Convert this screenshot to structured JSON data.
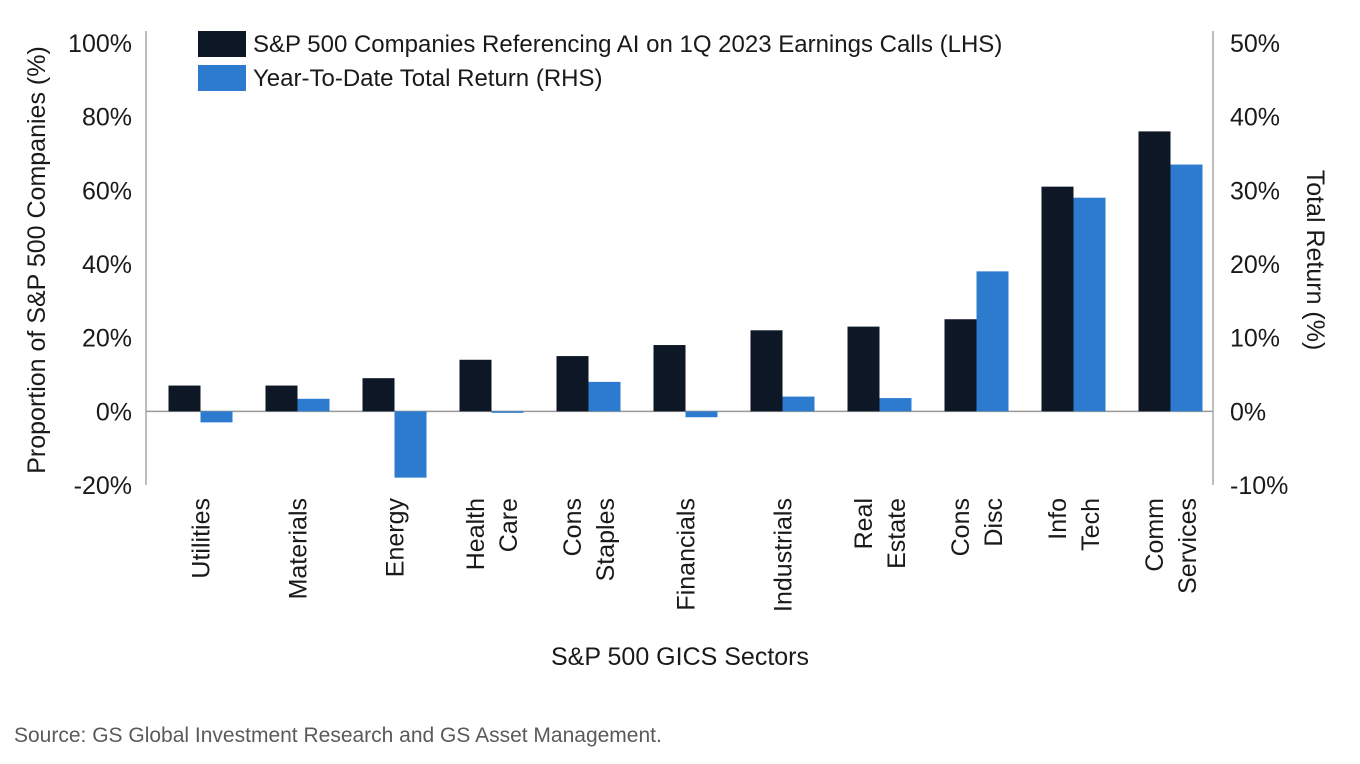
{
  "chart_data": {
    "type": "bar",
    "xlabel": "S&P 500 GICS Sectors",
    "ylabel_left": "Proportion of S&P 500 Companies (%)",
    "ylabel_right": "Total Return (%)",
    "categories": [
      [
        "Utilities"
      ],
      [
        "Materials"
      ],
      [
        "Energy"
      ],
      [
        "Health",
        "Care"
      ],
      [
        "Cons",
        "Staples"
      ],
      [
        "Financials"
      ],
      [
        "Industrials"
      ],
      [
        "Real",
        "Estate"
      ],
      [
        "Cons",
        "Disc"
      ],
      [
        "Info",
        "Tech"
      ],
      [
        "Comm",
        "Services"
      ]
    ],
    "ylim_left": [
      -20,
      100
    ],
    "ylim_right": [
      -10,
      50
    ],
    "yticks_left": [
      -20,
      0,
      20,
      40,
      60,
      80,
      100
    ],
    "yticks_right": [
      -10,
      0,
      10,
      20,
      30,
      40,
      50
    ],
    "tick_format": "%",
    "series": [
      {
        "name": "S&P 500 Companies Referencing AI on 1Q 2023 Earnings Calls (LHS)",
        "axis": "left",
        "color": "#0d1726",
        "values": [
          7,
          7,
          9,
          14,
          15,
          18,
          22,
          23,
          25,
          61,
          76
        ]
      },
      {
        "name": "Year-To-Date Total Return (RHS)",
        "axis": "right",
        "color": "#2c7bcf",
        "values": [
          -1.5,
          1.7,
          -9,
          -0.1,
          4,
          -0.8,
          2,
          1.8,
          19,
          29,
          33.5
        ]
      }
    ],
    "legend_position": "top",
    "grid": false
  },
  "source": "Source: GS Global Investment Research and GS Asset Management."
}
